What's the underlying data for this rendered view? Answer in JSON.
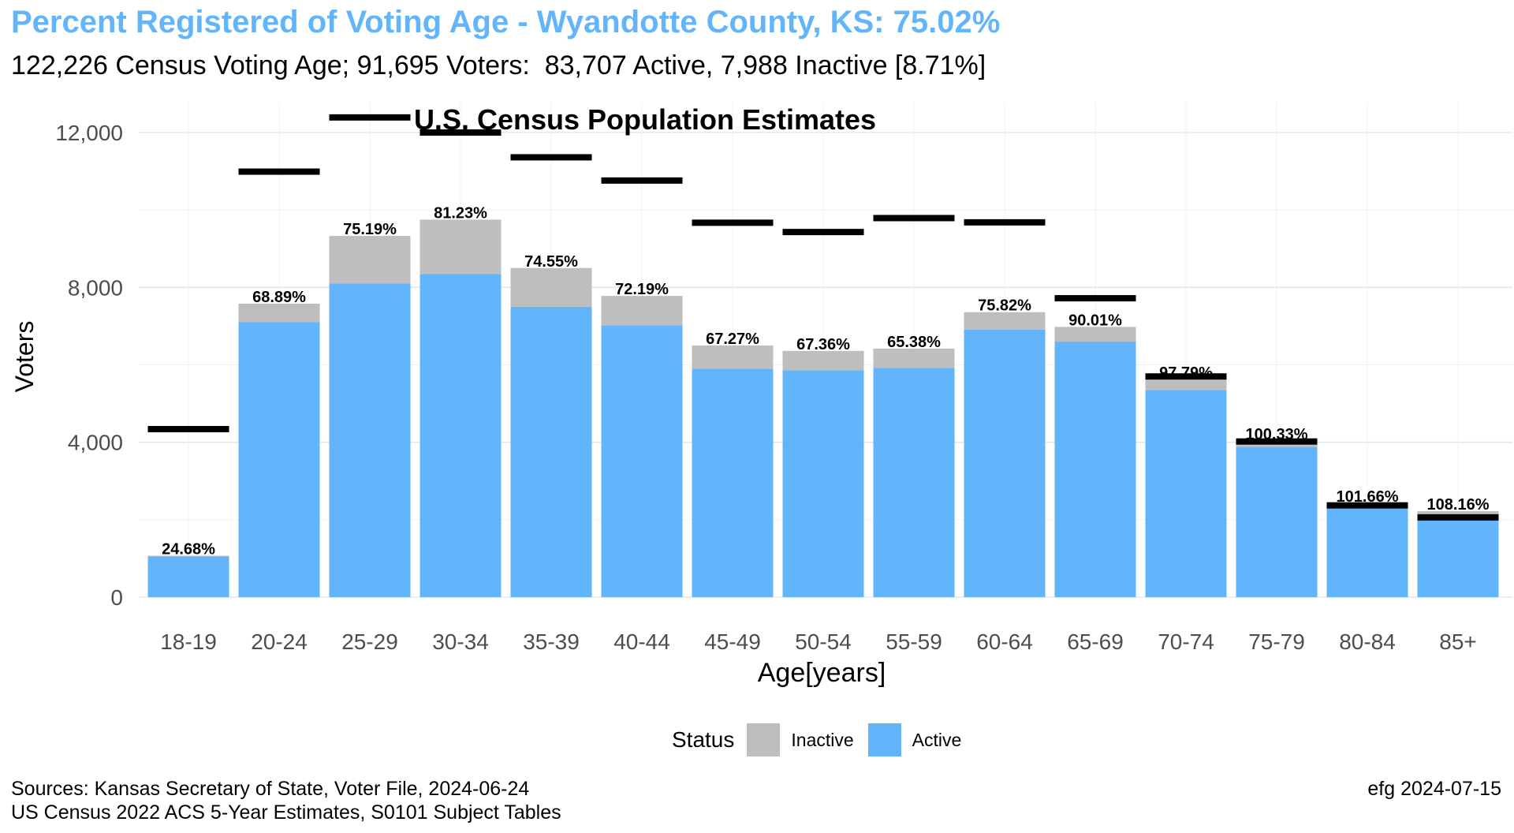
{
  "header": {
    "title": "Percent Registered of Voting Age - Wyandotte County, KS: 75.02%",
    "subtitle": "122,226 Census Voting Age; 91,695 Voters:  83,707 Active, 7,988 Inactive [8.71%]"
  },
  "footer": {
    "source_line1": "Sources: Kansas Secretary of State, Voter File, 2024-06-24",
    "source_line2": "US Census 2022 ACS 5-Year Estimates, S0101 Subject Tables",
    "credit": "efg 2024-07-15"
  },
  "legend": {
    "title": "Status",
    "items": [
      {
        "label": "Inactive",
        "color": "#bebebe"
      },
      {
        "label": "Active",
        "color": "#63b5fb"
      }
    ]
  },
  "chart_data": {
    "type": "bar",
    "stacked": true,
    "annotation": "U.S. Census Population Estimates",
    "xlabel": "Age[years]",
    "ylabel": "Voters",
    "ylim": [
      0,
      12500
    ],
    "yticks": [
      0,
      4000,
      8000,
      12000
    ],
    "ytick_labels": [
      "0",
      "4,000",
      "8,000",
      "12,000"
    ],
    "grid": true,
    "legend_position": "bottom",
    "categories": [
      "18-19",
      "20-24",
      "25-29",
      "30-34",
      "35-39",
      "40-44",
      "45-49",
      "50-54",
      "55-59",
      "60-64",
      "65-69",
      "70-74",
      "75-79",
      "80-84",
      "85+"
    ],
    "series": [
      {
        "name": "Active",
        "color": "#63b5fb",
        "values": [
          1050,
          7100,
          8100,
          8350,
          7500,
          7020,
          5900,
          5860,
          5920,
          6910,
          6600,
          5350,
          3880,
          2300,
          2000
        ]
      },
      {
        "name": "Inactive",
        "color": "#bebebe",
        "values": [
          20,
          480,
          1230,
          1400,
          1000,
          760,
          600,
          500,
          500,
          450,
          380,
          270,
          150,
          120,
          220
        ]
      }
    ],
    "census_estimates": [
      4340,
      10990,
      12390,
      12000,
      11360,
      10760,
      9670,
      9430,
      9790,
      9680,
      7720,
      5700,
      4020,
      2370,
      2060
    ],
    "census_color": "#000000",
    "pct_labels": [
      "24.68%",
      "68.89%",
      "75.19%",
      "81.23%",
      "74.55%",
      "72.19%",
      "67.27%",
      "67.36%",
      "65.38%",
      "75.82%",
      "90.01%",
      "97.79%",
      "100.33%",
      "101.66%",
      "108.16%"
    ]
  }
}
